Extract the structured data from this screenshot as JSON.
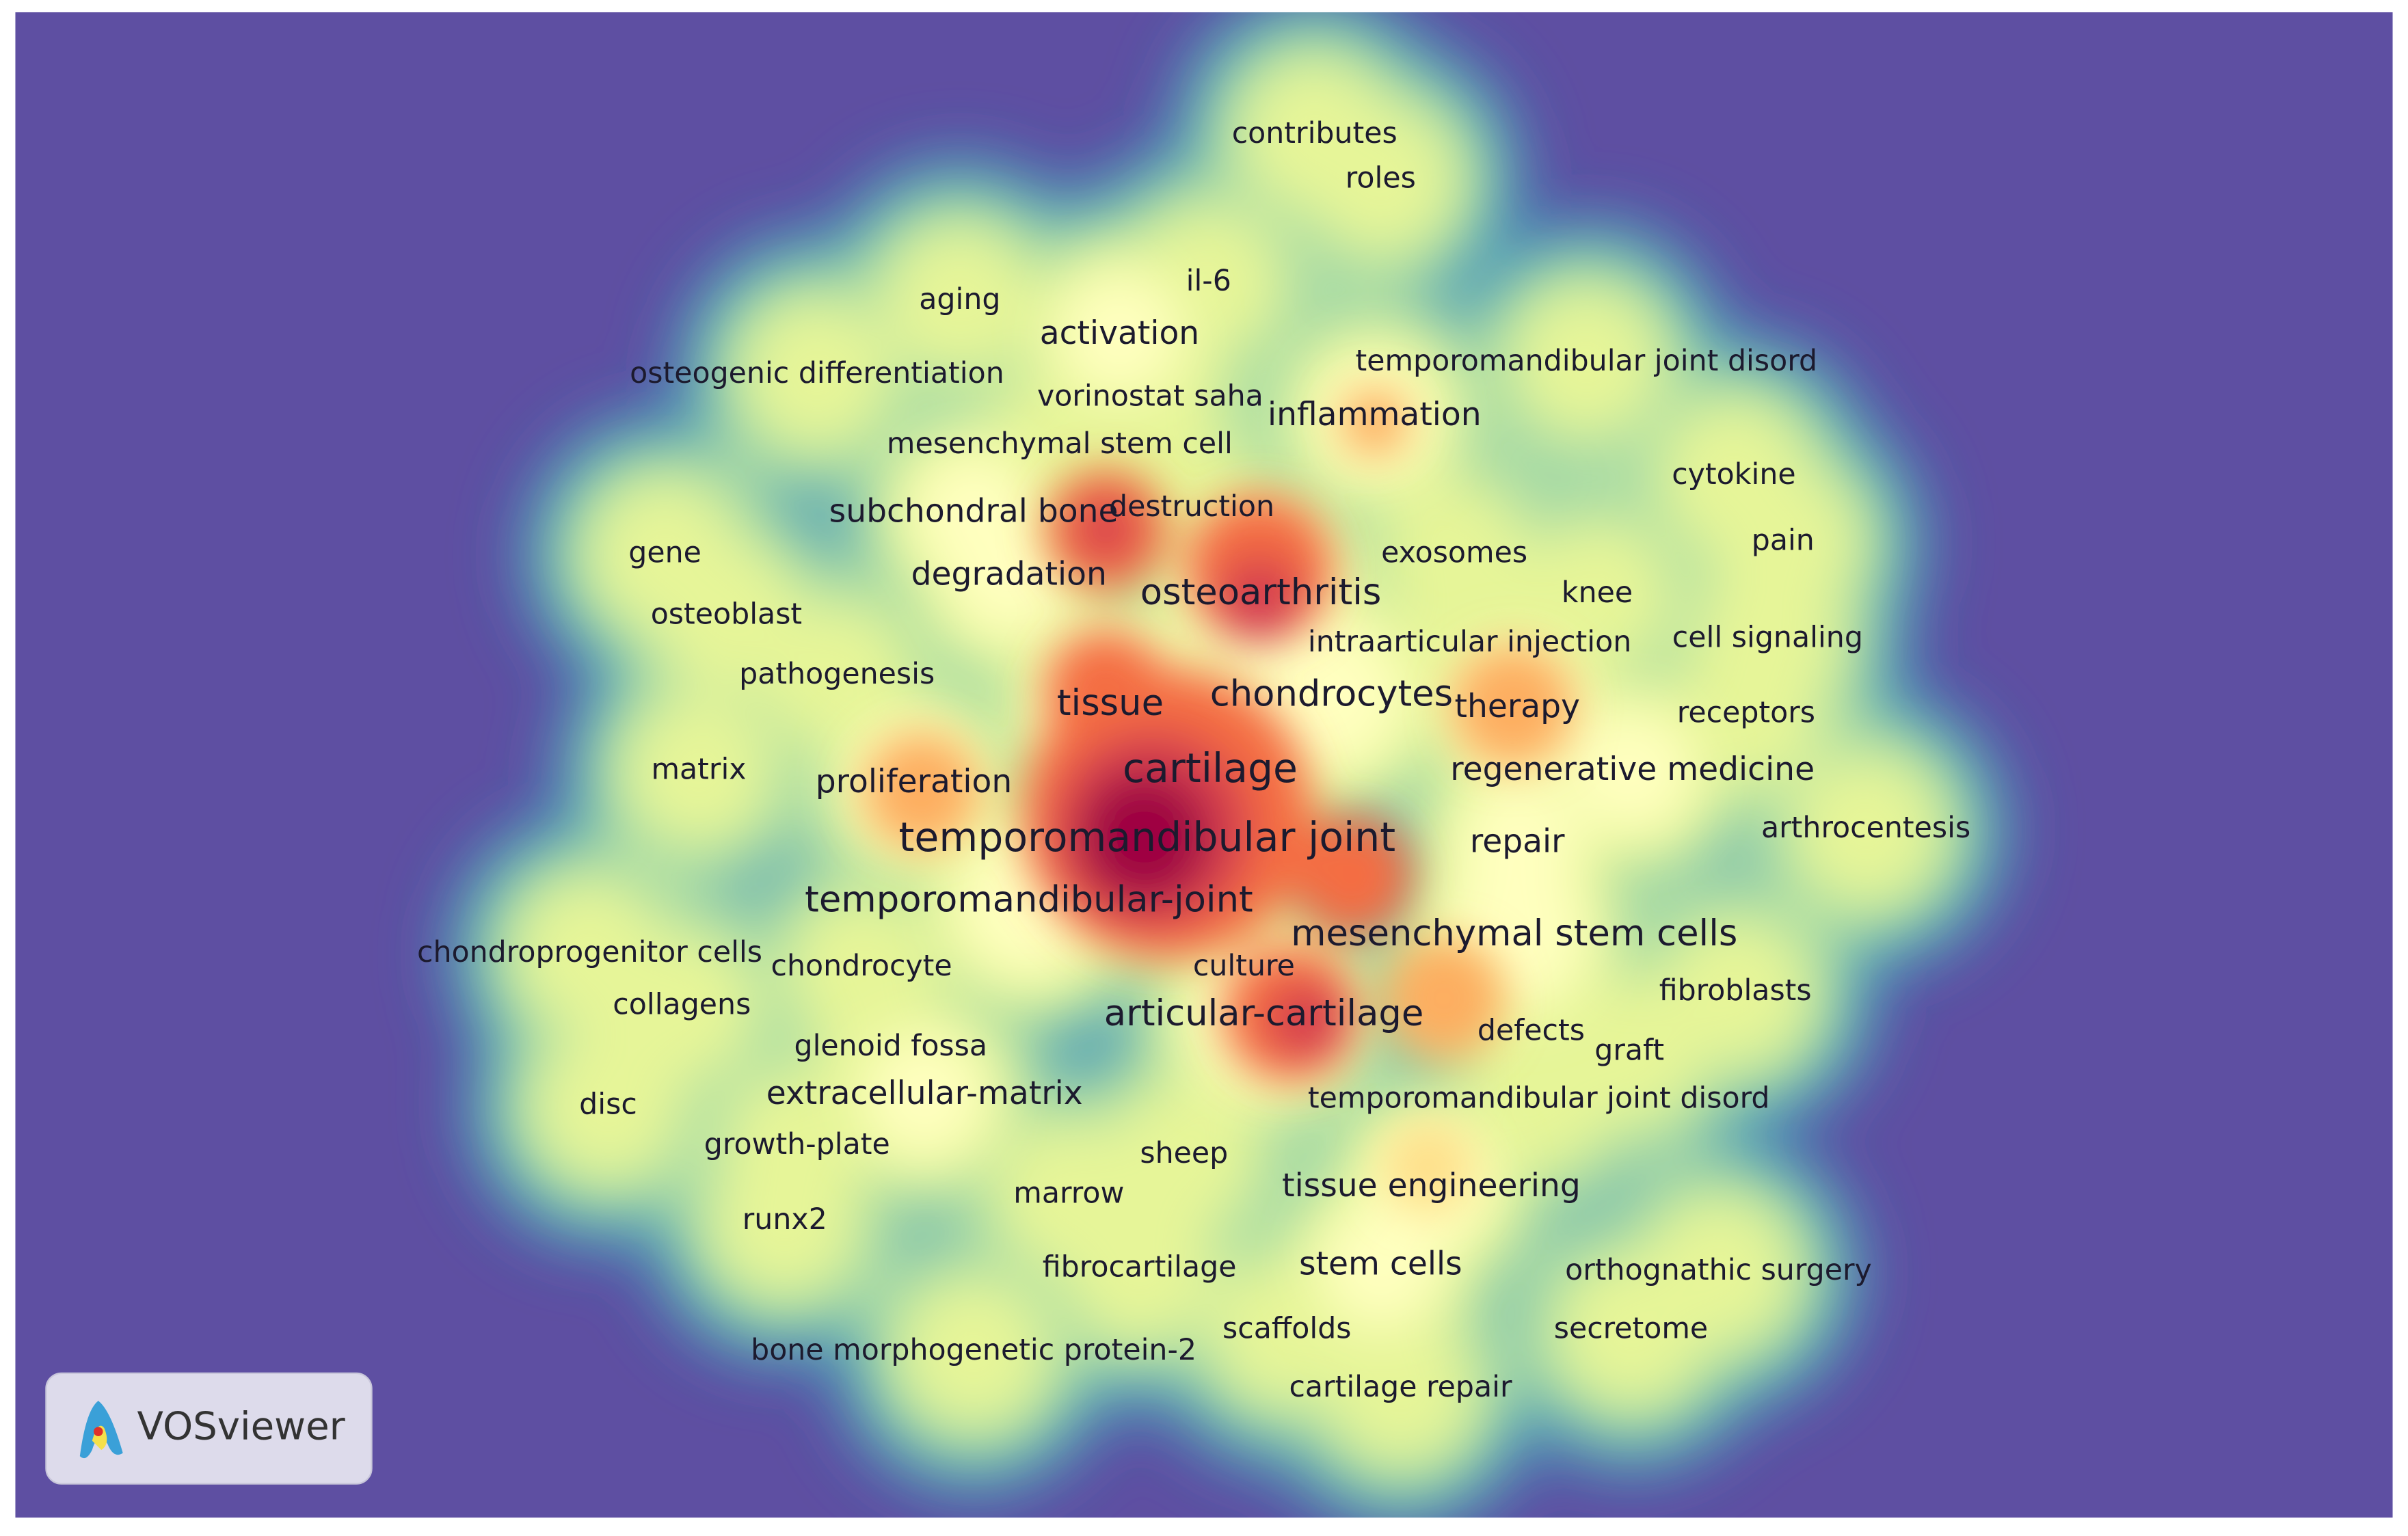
{
  "terms": [
    "contributes",
    "roles",
    "il-6",
    "aging",
    "activation",
    "osteogenic differentiation",
    "temporomandibular joint disord",
    "vorinostat saha",
    "inflammation",
    "mesenchymal stem cell",
    "cytokine",
    "subchondral bone",
    "destruction",
    "gene",
    "exosomes",
    "pain",
    "degradation",
    "osteoarthritis",
    "knee",
    "osteoblast",
    "intraarticular injection",
    "cell signaling",
    "pathogenesis",
    "tissue",
    "chondrocytes",
    "therapy",
    "receptors",
    "matrix",
    "cartilage",
    "regenerative medicine",
    "proliferation",
    "temporomandibular joint",
    "repair",
    "arthrocentesis",
    "temporomandibular-joint",
    "mesenchymal stem cells",
    "chondroprogenitor cells",
    "chondrocyte",
    "culture",
    "fibroblasts",
    "collagens",
    "articular-cartilage",
    "defects",
    "graft",
    "glenoid fossa",
    "disc",
    "extracellular-matrix",
    "temporomandibular joint disord",
    "growth-plate",
    "sheep",
    "marrow",
    "tissue engineering",
    "runx2",
    "fibrocartilage",
    "stem cells",
    "orthognathic surgery",
    "scaffolds",
    "secretome",
    "bone morphogenetic protein-2",
    "cartilage repair"
  ],
  "logo": "VOSviewer"
}
